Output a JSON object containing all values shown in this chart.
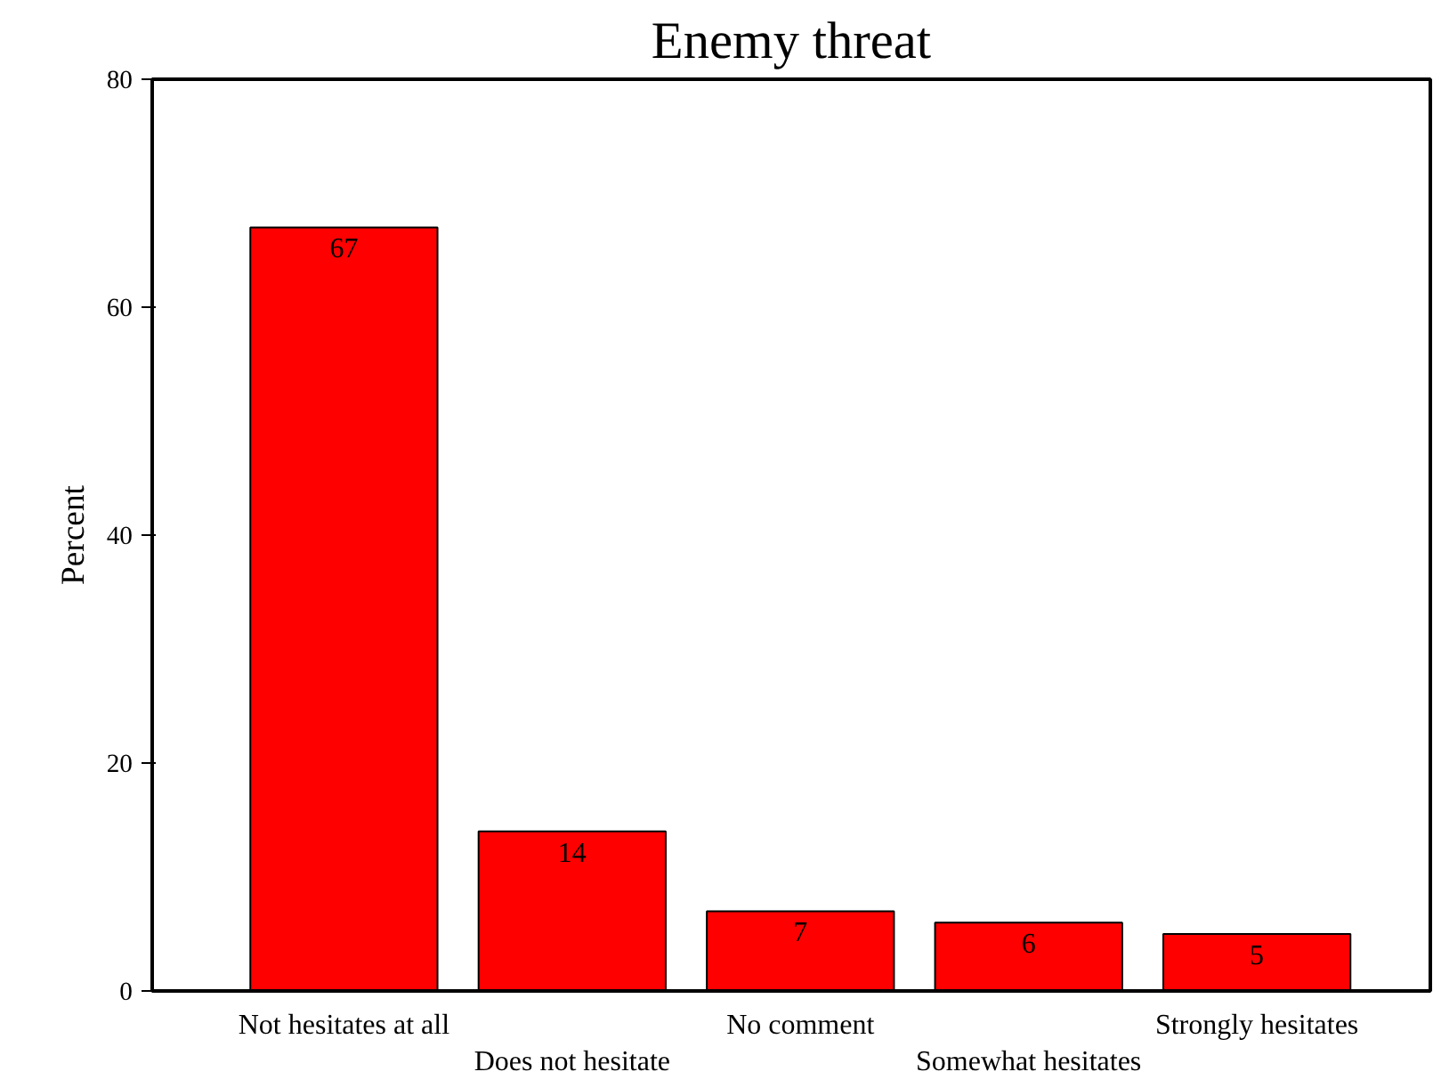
{
  "chart_data": {
    "type": "bar",
    "title": "Enemy threat",
    "ylabel": "Percent",
    "categories": [
      "Not hesitates at all",
      "Does not hesitate",
      "No comment",
      "Somewhat hesitates",
      "Strongly hesitates"
    ],
    "values": [
      67,
      14,
      7,
      6,
      5
    ],
    "color": "#ff0000",
    "ylim": [
      0,
      80
    ],
    "yticks": [
      0,
      20,
      40,
      60,
      80
    ],
    "data_labels": true,
    "grid": false
  }
}
